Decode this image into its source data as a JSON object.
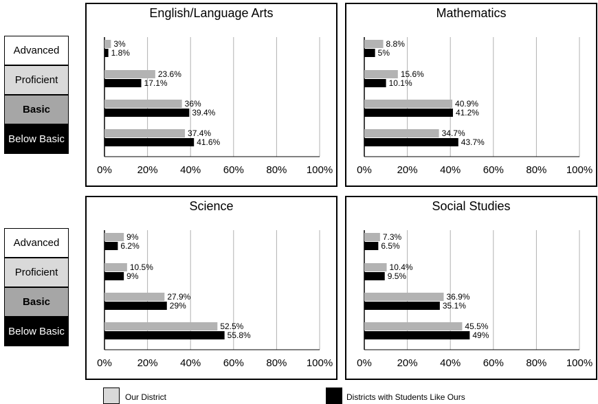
{
  "levels": [
    {
      "label": "Advanced",
      "bg": "#ffffff",
      "fg": "#000000",
      "bold": false
    },
    {
      "label": "Proficient",
      "bg": "#d9d9d9",
      "fg": "#000000",
      "bold": false
    },
    {
      "label": "Basic",
      "bg": "#a6a6a6",
      "fg": "#000000",
      "bold": true
    },
    {
      "label": "Below Basic",
      "bg": "#000000",
      "fg": "#ffffff",
      "bold": false
    }
  ],
  "legend": {
    "our_district": "Our District",
    "similar_districts": "Districts with Students Like Ours"
  },
  "colors": {
    "our_district": "#b3b3b3",
    "similar_districts": "#000000"
  },
  "chart_data": [
    {
      "type": "bar",
      "title": "English/Language Arts",
      "categories": [
        "Advanced",
        "Proficient",
        "Basic",
        "Below Basic"
      ],
      "series": [
        {
          "name": "Our District",
          "values": [
            3,
            23.6,
            36,
            37.4
          ],
          "labels": [
            "3%",
            "23.6%",
            "36%",
            "37.4%"
          ]
        },
        {
          "name": "Districts with Students Like Ours",
          "values": [
            1.8,
            17.1,
            39.4,
            41.6
          ],
          "labels": [
            "1.8%",
            "17.1%",
            "39.4%",
            "41.6%"
          ]
        }
      ],
      "xlim": [
        0,
        100
      ],
      "xticks": [
        "0%",
        "20%",
        "40%",
        "60%",
        "80%",
        "100%"
      ],
      "grid": true
    },
    {
      "type": "bar",
      "title": "Mathematics",
      "categories": [
        "Advanced",
        "Proficient",
        "Basic",
        "Below Basic"
      ],
      "series": [
        {
          "name": "Our District",
          "values": [
            8.8,
            15.6,
            40.9,
            34.7
          ],
          "labels": [
            "8.8%",
            "15.6%",
            "40.9%",
            "34.7%"
          ]
        },
        {
          "name": "Districts with Students Like Ours",
          "values": [
            5,
            10.1,
            41.2,
            43.7
          ],
          "labels": [
            "5%",
            "10.1%",
            "41.2%",
            "43.7%"
          ]
        }
      ],
      "xlim": [
        0,
        100
      ],
      "xticks": [
        "0%",
        "20%",
        "40%",
        "60%",
        "80%",
        "100%"
      ],
      "grid": true
    },
    {
      "type": "bar",
      "title": "Science",
      "categories": [
        "Advanced",
        "Proficient",
        "Basic",
        "Below Basic"
      ],
      "series": [
        {
          "name": "Our District",
          "values": [
            9,
            10.5,
            27.9,
            52.5
          ],
          "labels": [
            "9%",
            "10.5%",
            "27.9%",
            "52.5%"
          ]
        },
        {
          "name": "Districts with Students Like Ours",
          "values": [
            6.2,
            9,
            29,
            55.8
          ],
          "labels": [
            "6.2%",
            "9%",
            "29%",
            "55.8%"
          ]
        }
      ],
      "xlim": [
        0,
        100
      ],
      "xticks": [
        "0%",
        "20%",
        "40%",
        "60%",
        "80%",
        "100%"
      ],
      "grid": true
    },
    {
      "type": "bar",
      "title": "Social Studies",
      "categories": [
        "Advanced",
        "Proficient",
        "Basic",
        "Below Basic"
      ],
      "series": [
        {
          "name": "Our District",
          "values": [
            7.3,
            10.4,
            36.9,
            45.5
          ],
          "labels": [
            "7.3%",
            "10.4%",
            "36.9%",
            "45.5%"
          ]
        },
        {
          "name": "Districts with Students Like Ours",
          "values": [
            6.5,
            9.5,
            35.1,
            49
          ],
          "labels": [
            "6.5%",
            "9.5%",
            "35.1%",
            "49%"
          ]
        }
      ],
      "xlim": [
        0,
        100
      ],
      "xticks": [
        "0%",
        "20%",
        "40%",
        "60%",
        "80%",
        "100%"
      ],
      "grid": true
    }
  ]
}
